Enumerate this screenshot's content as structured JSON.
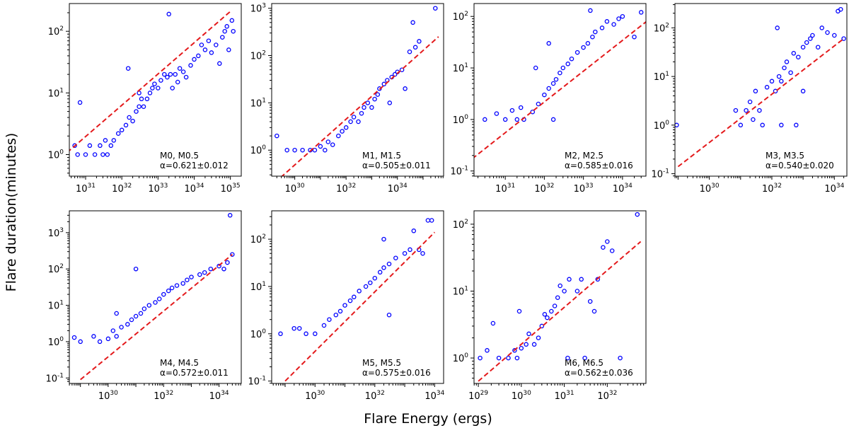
{
  "figure": {
    "xlabel": "Flare Energy (ergs)",
    "ylabel": "Flare duration(minutes)",
    "colors": {
      "points": "#0000ff",
      "fit": "#e41a1c",
      "frame": "#000000"
    }
  },
  "chart_data": [
    {
      "type": "scatter",
      "annotation": "M0, M0.5",
      "alpha_text": "α=0.621±0.012",
      "x_scale": "log",
      "y_scale": "log",
      "xlim_exp": [
        30.55,
        35.3
      ],
      "ylim_exp": [
        -0.35,
        2.45
      ],
      "xticks": [
        "10^31",
        "10^32",
        "10^33",
        "10^34",
        "10^35"
      ],
      "yticks": [
        "10^0",
        "10^1",
        "10^2"
      ],
      "fit_line": {
        "x": [
          1e+30,
          1e+35
        ],
        "y": [
          0.61,
          210
        ]
      },
      "points": [
        [
          3e+30,
          1
        ],
        [
          7e+30,
          7
        ],
        [
          5e+30,
          1.4
        ],
        [
          6e+30,
          1
        ],
        [
          1e+31,
          1
        ],
        [
          1.3e+31,
          1.4
        ],
        [
          1.8e+31,
          1
        ],
        [
          2.5e+31,
          1.4
        ],
        [
          3e+31,
          1
        ],
        [
          3.5e+31,
          1.7
        ],
        [
          4e+31,
          1
        ],
        [
          5e+31,
          1.4
        ],
        [
          6e+31,
          1.7
        ],
        [
          8e+31,
          2.2
        ],
        [
          1e+32,
          2.5
        ],
        [
          1.3e+32,
          3
        ],
        [
          1.6e+32,
          4
        ],
        [
          2e+32,
          3.5
        ],
        [
          2.5e+32,
          5
        ],
        [
          3e+32,
          6
        ],
        [
          3.5e+32,
          8
        ],
        [
          4e+32,
          6
        ],
        [
          5e+32,
          8
        ],
        [
          6e+32,
          10
        ],
        [
          7e+32,
          12
        ],
        [
          8e+32,
          14
        ],
        [
          1e+33,
          12
        ],
        [
          1.2e+33,
          16
        ],
        [
          1.5e+33,
          20
        ],
        [
          1.8e+33,
          18
        ],
        [
          2.2e+33,
          20
        ],
        [
          2.5e+33,
          12
        ],
        [
          3e+33,
          20
        ],
        [
          3.5e+33,
          15
        ],
        [
          4e+33,
          25
        ],
        [
          5e+33,
          22
        ],
        [
          6e+33,
          18
        ],
        [
          8e+33,
          28
        ],
        [
          1e+34,
          35
        ],
        [
          1.3e+34,
          40
        ],
        [
          1.6e+34,
          60
        ],
        [
          2e+34,
          50
        ],
        [
          2.5e+34,
          70
        ],
        [
          3e+34,
          45
        ],
        [
          4e+34,
          60
        ],
        [
          5e+34,
          30
        ],
        [
          6e+34,
          80
        ],
        [
          7e+34,
          100
        ],
        [
          8e+34,
          120
        ],
        [
          9e+34,
          50
        ],
        [
          1.1e+35,
          150
        ],
        [
          1.2e+35,
          100
        ],
        [
          2e+33,
          190
        ],
        [
          1.5e+32,
          25
        ],
        [
          3e+32,
          10
        ]
      ]
    },
    {
      "type": "scatter",
      "annotation": "M1, M1.5",
      "alpha_text": "α=0.505±0.011",
      "x_scale": "log",
      "y_scale": "log",
      "xlim_exp": [
        29.1,
        35.8
      ],
      "ylim_exp": [
        -0.55,
        3.1
      ],
      "xticks": [
        "10^30",
        "10^32",
        "10^34"
      ],
      "yticks": [
        "10^0",
        "10^1",
        "10^2",
        "10^3"
      ],
      "fit_line": {
        "x": [
          1e+29,
          4e+35
        ],
        "y": [
          0.16,
          250
        ]
      },
      "points": [
        [
          2e+29,
          2
        ],
        [
          5e+29,
          1
        ],
        [
          1e+30,
          1
        ],
        [
          2e+30,
          1
        ],
        [
          4e+30,
          1
        ],
        [
          6e+30,
          1
        ],
        [
          1e+31,
          1.2
        ],
        [
          1.5e+31,
          1
        ],
        [
          2e+31,
          1.5
        ],
        [
          3e+31,
          1.3
        ],
        [
          5e+31,
          2
        ],
        [
          7e+31,
          2.5
        ],
        [
          1e+32,
          3
        ],
        [
          1.5e+32,
          4
        ],
        [
          2e+32,
          5
        ],
        [
          3e+32,
          4
        ],
        [
          4e+32,
          6
        ],
        [
          5e+32,
          8
        ],
        [
          7e+32,
          10
        ],
        [
          1e+33,
          8
        ],
        [
          1.3e+33,
          12
        ],
        [
          1.7e+33,
          15
        ],
        [
          2e+33,
          20
        ],
        [
          3e+33,
          25
        ],
        [
          4e+33,
          30
        ],
        [
          6e+33,
          35
        ],
        [
          8e+33,
          40
        ],
        [
          1e+34,
          45
        ],
        [
          1.5e+34,
          50
        ],
        [
          3e+34,
          120
        ],
        [
          5e+34,
          150
        ],
        [
          7e+34,
          200
        ],
        [
          4e+34,
          500
        ],
        [
          3e+35,
          1000
        ],
        [
          2e+34,
          20
        ],
        [
          5e+33,
          10
        ]
      ]
    },
    {
      "type": "scatter",
      "annotation": "M2, M2.5",
      "alpha_text": "α=0.585±0.016",
      "x_scale": "log",
      "y_scale": "log",
      "xlim_exp": [
        30.2,
        34.6
      ],
      "ylim_exp": [
        -1.1,
        2.25
      ],
      "xticks": [
        "10^31",
        "10^32",
        "10^33",
        "10^34"
      ],
      "yticks": [
        "10^-1",
        "10^0",
        "10^1",
        "10^2"
      ],
      "fit_line": {
        "x": [
          1e+30,
          6e+34
        ],
        "y": [
          0.14,
          100
        ]
      },
      "points": [
        [
          3e+30,
          1
        ],
        [
          6e+30,
          1.3
        ],
        [
          1e+31,
          1
        ],
        [
          1.5e+31,
          1.5
        ],
        [
          2e+31,
          1
        ],
        [
          2.5e+31,
          1.7
        ],
        [
          3e+31,
          1
        ],
        [
          5e+31,
          1.4
        ],
        [
          7e+31,
          2
        ],
        [
          1e+32,
          3
        ],
        [
          1.3e+32,
          4
        ],
        [
          1.7e+32,
          5
        ],
        [
          2e+32,
          6
        ],
        [
          2.5e+32,
          8
        ],
        [
          3e+32,
          10
        ],
        [
          4e+32,
          12
        ],
        [
          5e+32,
          15
        ],
        [
          7e+32,
          20
        ],
        [
          1e+33,
          25
        ],
        [
          1.3e+33,
          30
        ],
        [
          1.7e+33,
          40
        ],
        [
          2e+33,
          50
        ],
        [
          3e+33,
          60
        ],
        [
          4e+33,
          80
        ],
        [
          6e+33,
          70
        ],
        [
          8e+33,
          90
        ],
        [
          1.5e+33,
          130
        ],
        [
          1e+34,
          100
        ],
        [
          2e+34,
          40
        ],
        [
          3e+34,
          120
        ],
        [
          1.3e+32,
          30
        ],
        [
          6e+31,
          10
        ],
        [
          1.7e+32,
          1
        ]
      ]
    },
    {
      "type": "scatter",
      "annotation": "M3, M3.5",
      "alpha_text": "α=0.540±0.020",
      "x_scale": "log",
      "y_scale": "log",
      "xlim_exp": [
        28.9,
        34.4
      ],
      "ylim_exp": [
        -1.05,
        2.5
      ],
      "xticks": [
        "10^30",
        "10^32",
        "10^34"
      ],
      "yticks": [
        "10^-1",
        "10^0",
        "10^1",
        "10^2"
      ],
      "fit_line": {
        "x": [
          1e+29,
          2e+34
        ],
        "y": [
          0.14,
          60
        ]
      },
      "points": [
        [
          9e+28,
          1
        ],
        [
          7e+30,
          2
        ],
        [
          1e+31,
          1
        ],
        [
          1.5e+31,
          2
        ],
        [
          2e+31,
          3
        ],
        [
          2.5e+31,
          1.3
        ],
        [
          3e+31,
          5
        ],
        [
          4e+31,
          2
        ],
        [
          5e+31,
          1
        ],
        [
          7e+31,
          6
        ],
        [
          1e+32,
          8
        ],
        [
          1.3e+32,
          5
        ],
        [
          1.7e+32,
          10
        ],
        [
          2e+32,
          8
        ],
        [
          2.5e+32,
          15
        ],
        [
          3e+32,
          20
        ],
        [
          4e+32,
          12
        ],
        [
          5e+32,
          30
        ],
        [
          7e+32,
          25
        ],
        [
          1e+33,
          40
        ],
        [
          1.3e+33,
          50
        ],
        [
          1.7e+33,
          60
        ],
        [
          2e+33,
          70
        ],
        [
          3e+33,
          40
        ],
        [
          4e+33,
          100
        ],
        [
          6e+33,
          80
        ],
        [
          1e+34,
          70
        ],
        [
          1.3e+34,
          220
        ],
        [
          1.6e+34,
          240
        ],
        [
          2e+34,
          60
        ],
        [
          1.5e+32,
          100
        ],
        [
          6e+32,
          1
        ],
        [
          2e+32,
          1
        ],
        [
          1e+33,
          5
        ]
      ]
    },
    {
      "type": "scatter",
      "annotation": "M4, M4.5",
      "alpha_text": "α=0.572±0.011",
      "x_scale": "log",
      "y_scale": "log",
      "xlim_exp": [
        28.6,
        34.8
      ],
      "ylim_exp": [
        -1.15,
        3.6
      ],
      "xticks": [
        "10^30",
        "10^32",
        "10^34"
      ],
      "yticks": [
        "10^-1",
        "10^0",
        "10^1",
        "10^2",
        "10^3"
      ],
      "fit_line": {
        "x": [
          1e+29,
          3e+34
        ],
        "y": [
          0.09,
          250
        ]
      },
      "points": [
        [
          6e+28,
          1.3
        ],
        [
          1e+29,
          1
        ],
        [
          3e+29,
          1.4
        ],
        [
          5e+29,
          1
        ],
        [
          1e+30,
          1.2
        ],
        [
          1.5e+30,
          2
        ],
        [
          2e+30,
          1.4
        ],
        [
          3e+30,
          2.5
        ],
        [
          5e+30,
          3
        ],
        [
          7e+30,
          4
        ],
        [
          1e+31,
          5
        ],
        [
          1.5e+31,
          6
        ],
        [
          2e+31,
          8
        ],
        [
          3e+31,
          10
        ],
        [
          5e+31,
          12
        ],
        [
          7e+31,
          15
        ],
        [
          1e+32,
          20
        ],
        [
          1.5e+32,
          25
        ],
        [
          2e+32,
          30
        ],
        [
          3e+32,
          35
        ],
        [
          5e+32,
          40
        ],
        [
          7e+32,
          50
        ],
        [
          1e+33,
          60
        ],
        [
          2e+33,
          70
        ],
        [
          3e+33,
          80
        ],
        [
          5e+33,
          100
        ],
        [
          1e+34,
          120
        ],
        [
          1.5e+34,
          100
        ],
        [
          2e+34,
          150
        ],
        [
          3e+34,
          250
        ],
        [
          2.5e+34,
          3000
        ],
        [
          1e+31,
          100
        ],
        [
          2e+30,
          6
        ]
      ]
    },
    {
      "type": "scatter",
      "annotation": "M5, M5.5",
      "alpha_text": "α=0.575±0.016",
      "x_scale": "log",
      "y_scale": "log",
      "xlim_exp": [
        28.55,
        34.3
      ],
      "ylim_exp": [
        -1.05,
        2.6
      ],
      "xticks": [
        "10^30",
        "10^32",
        "10^34"
      ],
      "yticks": [
        "10^-1",
        "10^0",
        "10^1",
        "10^2"
      ],
      "fit_line": {
        "x": [
          1e+29,
          1e+34
        ],
        "y": [
          0.1,
          140
        ]
      },
      "points": [
        [
          7e+28,
          1
        ],
        [
          2e+29,
          1.3
        ],
        [
          3e+29,
          1.3
        ],
        [
          5e+29,
          1
        ],
        [
          1e+30,
          1
        ],
        [
          2e+30,
          1.5
        ],
        [
          3e+30,
          2
        ],
        [
          5e+30,
          2.5
        ],
        [
          7e+30,
          3
        ],
        [
          1e+31,
          4
        ],
        [
          1.5e+31,
          5
        ],
        [
          2e+31,
          6
        ],
        [
          3e+31,
          8
        ],
        [
          5e+31,
          10
        ],
        [
          7e+31,
          12
        ],
        [
          1e+32,
          15
        ],
        [
          1.5e+32,
          20
        ],
        [
          2e+32,
          25
        ],
        [
          3e+32,
          30
        ],
        [
          5e+32,
          40
        ],
        [
          1e+33,
          50
        ],
        [
          1.5e+33,
          60
        ],
        [
          2e+33,
          150
        ],
        [
          3e+33,
          60
        ],
        [
          4e+33,
          50
        ],
        [
          6e+33,
          250
        ],
        [
          8e+33,
          250
        ],
        [
          3e+32,
          2.5
        ],
        [
          2e+32,
          100
        ]
      ]
    },
    {
      "type": "scatter",
      "annotation": "M6, M6.5",
      "alpha_text": "α=0.562±0.036",
      "x_scale": "log",
      "y_scale": "log",
      "xlim_exp": [
        28.9,
        32.9
      ],
      "ylim_exp": [
        -0.38,
        2.2
      ],
      "xticks": [
        "10^29",
        "10^30",
        "10^31",
        "10^32"
      ],
      "yticks": [
        "10^0",
        "10^1",
        "10^2"
      ],
      "fit_line": {
        "x": [
          1e+29,
          6e+32
        ],
        "y": [
          0.45,
          55
        ]
      },
      "points": [
        [
          1.1e+29,
          1
        ],
        [
          1.6e+29,
          1.3
        ],
        [
          2.2e+29,
          3.3
        ],
        [
          3e+29,
          1
        ],
        [
          5e+29,
          1
        ],
        [
          7e+29,
          1.3
        ],
        [
          8e+29,
          1
        ],
        [
          9e+29,
          5
        ],
        [
          1e+30,
          1.4
        ],
        [
          1.3e+30,
          1.6
        ],
        [
          1.5e+30,
          2.3
        ],
        [
          2e+30,
          1.6
        ],
        [
          2.5e+30,
          2
        ],
        [
          3e+30,
          3
        ],
        [
          3.5e+30,
          4.5
        ],
        [
          4e+30,
          4
        ],
        [
          5e+30,
          5
        ],
        [
          6e+30,
          6
        ],
        [
          7e+30,
          8
        ],
        [
          8e+30,
          12
        ],
        [
          1e+31,
          10
        ],
        [
          1.3e+31,
          15
        ],
        [
          2e+31,
          10
        ],
        [
          2.5e+31,
          15
        ],
        [
          3e+31,
          1
        ],
        [
          4e+31,
          7
        ],
        [
          5e+31,
          5
        ],
        [
          6e+31,
          15
        ],
        [
          8e+31,
          45
        ],
        [
          1e+32,
          55
        ],
        [
          1.3e+32,
          40
        ],
        [
          2e+32,
          1
        ],
        [
          5e+32,
          140
        ],
        [
          1.2e+31,
          1
        ]
      ]
    }
  ]
}
